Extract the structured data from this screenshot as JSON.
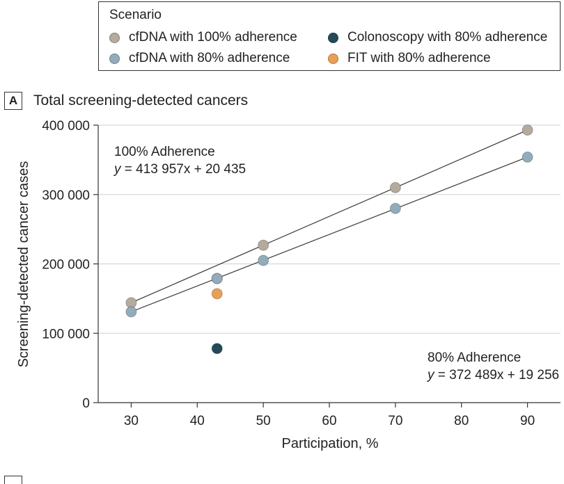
{
  "legend": {
    "title": "Scenario",
    "items": [
      {
        "label": "cfDNA with 100% adherence",
        "color": "#b5ab9c"
      },
      {
        "label": "cfDNA with 80% adherence",
        "color": "#93acbb"
      },
      {
        "label": "Colonoscopy with 80% adherence",
        "color": "#244a5a"
      },
      {
        "label": "FIT with 80% adherence",
        "color": "#e9a055"
      }
    ]
  },
  "panel": {
    "label": "A",
    "title": "Total screening-detected cancers"
  },
  "chart_data": {
    "type": "scatter",
    "title": "Total screening-detected cancers",
    "xlabel": "Participation, %",
    "ylabel": "Screening-detected cancer cases",
    "xlim": [
      25,
      95
    ],
    "ylim": [
      0,
      400000
    ],
    "xticks": [
      30,
      40,
      50,
      60,
      70,
      80,
      90
    ],
    "yticks": [
      0,
      100000,
      200000,
      300000,
      400000
    ],
    "ytick_labels": [
      "0",
      "100 000",
      "200 000",
      "300 000",
      "400 000"
    ],
    "series": [
      {
        "name": "cfDNA with 100% adherence",
        "color": "#b5ab9c",
        "points": [
          {
            "x": 30,
            "y": 144000
          },
          {
            "x": 43,
            "y": 179000
          },
          {
            "x": 50,
            "y": 227000
          },
          {
            "x": 70,
            "y": 310000
          },
          {
            "x": 90,
            "y": 393000
          }
        ]
      },
      {
        "name": "cfDNA with 80% adherence",
        "color": "#93acbb",
        "points": [
          {
            "x": 30,
            "y": 131000
          },
          {
            "x": 43,
            "y": 179000
          },
          {
            "x": 50,
            "y": 205000
          },
          {
            "x": 70,
            "y": 280000
          },
          {
            "x": 90,
            "y": 354000
          }
        ]
      },
      {
        "name": "Colonoscopy with 80% adherence",
        "color": "#244a5a",
        "points": [
          {
            "x": 43,
            "y": 78000
          }
        ]
      },
      {
        "name": "FIT with 80% adherence",
        "color": "#e9a055",
        "points": [
          {
            "x": 43,
            "y": 157000
          }
        ]
      }
    ],
    "fit_lines": [
      {
        "name": "100% Adherence",
        "x": [
          30,
          90
        ],
        "y": [
          144000,
          393000
        ]
      },
      {
        "name": "80% Adherence",
        "x": [
          30,
          90
        ],
        "y": [
          131000,
          354000
        ]
      }
    ],
    "annotations": [
      {
        "title": "100% Adherence",
        "y_label": "y",
        "equation": " = 413 957x + 20 435"
      },
      {
        "title": "80% Adherence",
        "y_label": "y",
        "equation": " = 372 489x + 19 256"
      }
    ]
  }
}
